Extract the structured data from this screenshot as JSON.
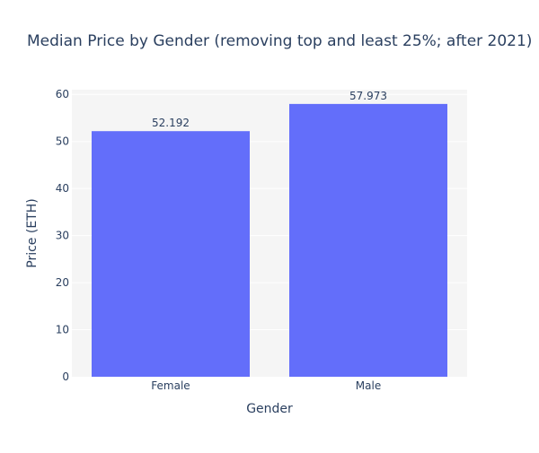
{
  "chart_data": {
    "type": "bar",
    "title": "Median Price by Gender (removing top and least 25%; after 2021)",
    "xlabel": "Gender",
    "ylabel": "Price (ETH)",
    "categories": [
      "Female",
      "Male"
    ],
    "values": [
      52.192,
      57.973
    ],
    "data_labels": [
      "52.192",
      "57.973"
    ],
    "ylim": [
      0,
      61
    ],
    "yticks": [
      0,
      10,
      20,
      30,
      40,
      50,
      60
    ],
    "grid": true,
    "colors": {
      "bar": "#636efa",
      "plot_bg": "#f5f5f5",
      "grid": "#ffffff",
      "text": "#2a3f5f",
      "title": "#2a3f5f"
    }
  }
}
